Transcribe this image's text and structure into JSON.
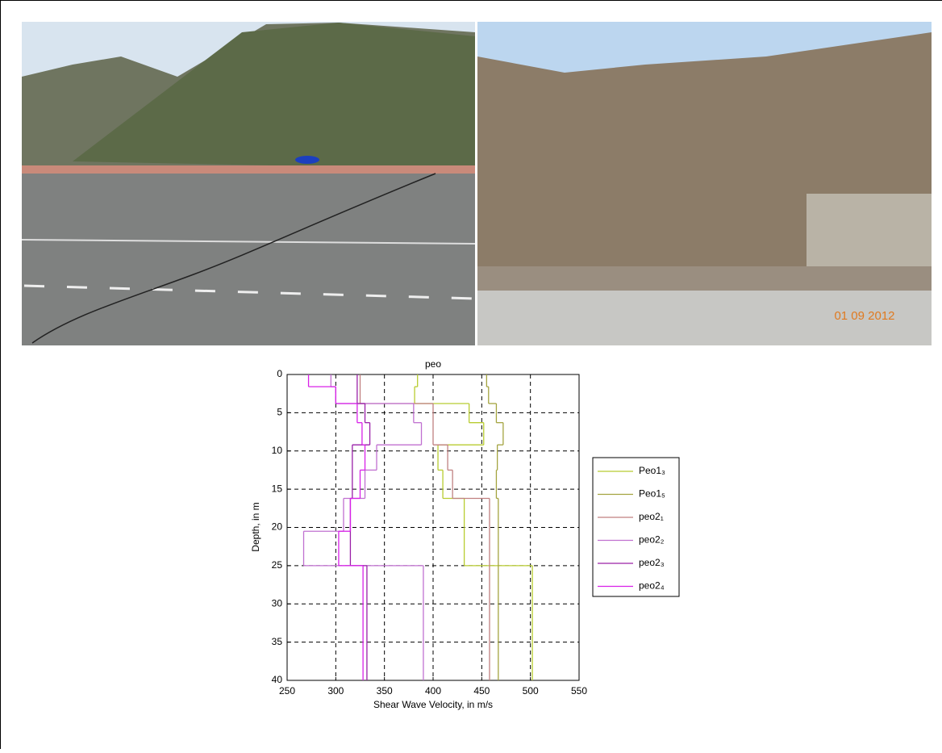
{
  "photos": {
    "date_stamp": "01 09 2012"
  },
  "chart_data": {
    "type": "step",
    "title": "peo",
    "xlabel": "Shear Wave Velocity, in m/s",
    "ylabel": "Depth, in m",
    "xlim": [
      250,
      550
    ],
    "xticks": [
      250,
      300,
      350,
      400,
      450,
      500,
      550
    ],
    "ylim": [
      0,
      40
    ],
    "yticks": [
      0,
      5,
      10,
      15,
      20,
      25,
      30,
      35,
      40
    ],
    "y_reversed": true,
    "grid": true,
    "series": [
      {
        "name": "Peo1₃",
        "color": "#b8cc30",
        "depths": [
          0,
          1.6,
          3.8,
          6.3,
          9.2,
          12.5,
          16.2,
          25
        ],
        "values": [
          384,
          381,
          437,
          452,
          405,
          410,
          432,
          502
        ]
      },
      {
        "name": "Peo1₅",
        "color": "#a4a440",
        "depths": [
          0,
          1.6,
          3.8,
          6.3,
          9.2,
          12.5,
          16.2
        ],
        "values": [
          455,
          457,
          465,
          472,
          466,
          465,
          467
        ]
      },
      {
        "name": "peo2₁",
        "color": "#c08080",
        "depths": [
          0,
          3.8,
          9.2,
          12.5,
          16.2
        ],
        "values": [
          325,
          400,
          415,
          420,
          458
        ]
      },
      {
        "name": "peo2₂",
        "color": "#c070d0",
        "depths": [
          0,
          1.6,
          3.8,
          6.3,
          9.2,
          12.5,
          16.2,
          20.5,
          25
        ],
        "values": [
          295,
          300,
          380,
          388,
          342,
          330,
          308,
          267,
          390
        ]
      },
      {
        "name": "peo2₃",
        "color": "#9a20a8",
        "depths": [
          0,
          3.8,
          6.3,
          9.2,
          16.2,
          25
        ],
        "values": [
          322,
          330,
          335,
          317,
          315,
          332
        ]
      },
      {
        "name": "peo2₄",
        "color": "#d820e8",
        "depths": [
          0,
          1.6,
          3.8,
          6.3,
          9.2,
          12.5,
          16.2,
          20.5,
          25
        ],
        "values": [
          272,
          300,
          322,
          327,
          330,
          325,
          315,
          303,
          328
        ]
      }
    ]
  }
}
